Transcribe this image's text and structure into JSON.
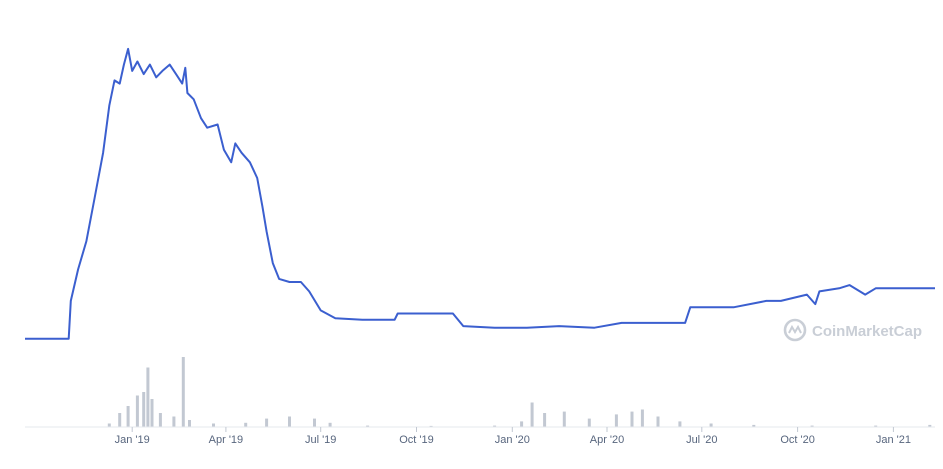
{
  "watermark": {
    "text": "CoinMarketCap",
    "icon": "coinmarketcap-logo-icon"
  },
  "colors": {
    "price_line": "#3b5fcf",
    "volume_bar": "#c2c8d2",
    "axis_text": "#58667e",
    "watermark": "#c9ced6"
  },
  "chart_data": {
    "type": "line",
    "title": "",
    "xlabel": "",
    "ylabel": "",
    "grid": false,
    "legend": "none",
    "x_tick_labels": [
      "Jan '19",
      "Apr '19",
      "Jul '19",
      "Oct '19",
      "Jan '20",
      "Apr '20",
      "Jul '20",
      "Oct '20",
      "Jan '21"
    ],
    "x_range": [
      "2018-09-20",
      "2021-02-10"
    ],
    "price_ylim": [
      0,
      1
    ],
    "series": [
      {
        "role": "price",
        "points": [
          [
            "2018-09-20",
            0.02
          ],
          [
            "2018-11-01",
            0.02
          ],
          [
            "2018-11-03",
            0.14
          ],
          [
            "2018-11-10",
            0.24
          ],
          [
            "2018-11-18",
            0.33
          ],
          [
            "2018-11-26",
            0.47
          ],
          [
            "2018-12-04",
            0.61
          ],
          [
            "2018-12-10",
            0.76
          ],
          [
            "2018-12-15",
            0.84
          ],
          [
            "2018-12-20",
            0.83
          ],
          [
            "2018-12-24",
            0.89
          ],
          [
            "2018-12-28",
            0.94
          ],
          [
            "2019-01-01",
            0.87
          ],
          [
            "2019-01-06",
            0.9
          ],
          [
            "2019-01-12",
            0.86
          ],
          [
            "2019-01-18",
            0.89
          ],
          [
            "2019-01-24",
            0.85
          ],
          [
            "2019-01-30",
            0.87
          ],
          [
            "2019-02-06",
            0.89
          ],
          [
            "2019-02-12",
            0.86
          ],
          [
            "2019-02-18",
            0.83
          ],
          [
            "2019-02-21",
            0.88
          ],
          [
            "2019-02-23",
            0.8
          ],
          [
            "2019-03-01",
            0.78
          ],
          [
            "2019-03-08",
            0.72
          ],
          [
            "2019-03-14",
            0.69
          ],
          [
            "2019-03-24",
            0.7
          ],
          [
            "2019-03-30",
            0.62
          ],
          [
            "2019-04-06",
            0.58
          ],
          [
            "2019-04-10",
            0.64
          ],
          [
            "2019-04-16",
            0.61
          ],
          [
            "2019-04-24",
            0.58
          ],
          [
            "2019-05-01",
            0.53
          ],
          [
            "2019-05-06",
            0.44
          ],
          [
            "2019-05-10",
            0.36
          ],
          [
            "2019-05-16",
            0.26
          ],
          [
            "2019-05-22",
            0.21
          ],
          [
            "2019-06-01",
            0.2
          ],
          [
            "2019-06-12",
            0.2
          ],
          [
            "2019-06-20",
            0.17
          ],
          [
            "2019-07-01",
            0.11
          ],
          [
            "2019-07-15",
            0.085
          ],
          [
            "2019-08-10",
            0.08
          ],
          [
            "2019-09-10",
            0.08
          ],
          [
            "2019-09-13",
            0.1
          ],
          [
            "2019-10-15",
            0.1
          ],
          [
            "2019-11-05",
            0.1
          ],
          [
            "2019-11-15",
            0.06
          ],
          [
            "2019-12-15",
            0.055
          ],
          [
            "2020-01-15",
            0.055
          ],
          [
            "2020-02-15",
            0.06
          ],
          [
            "2020-03-20",
            0.055
          ],
          [
            "2020-04-15",
            0.07
          ],
          [
            "2020-05-25",
            0.07
          ],
          [
            "2020-06-15",
            0.07
          ],
          [
            "2020-06-20",
            0.12
          ],
          [
            "2020-08-01",
            0.12
          ],
          [
            "2020-09-01",
            0.14
          ],
          [
            "2020-09-15",
            0.14
          ],
          [
            "2020-10-10",
            0.16
          ],
          [
            "2020-10-18",
            0.13
          ],
          [
            "2020-10-22",
            0.17
          ],
          [
            "2020-11-10",
            0.18
          ],
          [
            "2020-11-20",
            0.19
          ],
          [
            "2020-12-05",
            0.16
          ],
          [
            "2020-12-15",
            0.18
          ],
          [
            "2021-01-15",
            0.18
          ],
          [
            "2021-02-10",
            0.18
          ]
        ]
      },
      {
        "role": "volume",
        "points": [
          [
            "2018-12-10",
            0.05
          ],
          [
            "2018-12-20",
            0.2
          ],
          [
            "2018-12-28",
            0.3
          ],
          [
            "2019-01-06",
            0.45
          ],
          [
            "2019-01-12",
            0.5
          ],
          [
            "2019-01-16",
            0.85
          ],
          [
            "2019-01-20",
            0.4
          ],
          [
            "2019-01-28",
            0.2
          ],
          [
            "2019-02-10",
            0.15
          ],
          [
            "2019-02-19",
            1.0
          ],
          [
            "2019-02-25",
            0.1
          ],
          [
            "2019-03-20",
            0.05
          ],
          [
            "2019-04-20",
            0.06
          ],
          [
            "2019-05-10",
            0.12
          ],
          [
            "2019-06-01",
            0.15
          ],
          [
            "2019-06-25",
            0.12
          ],
          [
            "2019-07-10",
            0.06
          ],
          [
            "2019-08-15",
            0.02
          ],
          [
            "2019-10-15",
            0.015
          ],
          [
            "2019-12-15",
            0.02
          ],
          [
            "2020-01-10",
            0.08
          ],
          [
            "2020-01-20",
            0.35
          ],
          [
            "2020-02-01",
            0.2
          ],
          [
            "2020-02-20",
            0.22
          ],
          [
            "2020-03-15",
            0.12
          ],
          [
            "2020-04-10",
            0.18
          ],
          [
            "2020-04-25",
            0.22
          ],
          [
            "2020-05-05",
            0.25
          ],
          [
            "2020-05-20",
            0.15
          ],
          [
            "2020-06-10",
            0.08
          ],
          [
            "2020-07-10",
            0.05
          ],
          [
            "2020-08-20",
            0.03
          ],
          [
            "2020-10-15",
            0.02
          ],
          [
            "2020-12-15",
            0.02
          ],
          [
            "2021-02-05",
            0.03
          ]
        ]
      }
    ]
  }
}
